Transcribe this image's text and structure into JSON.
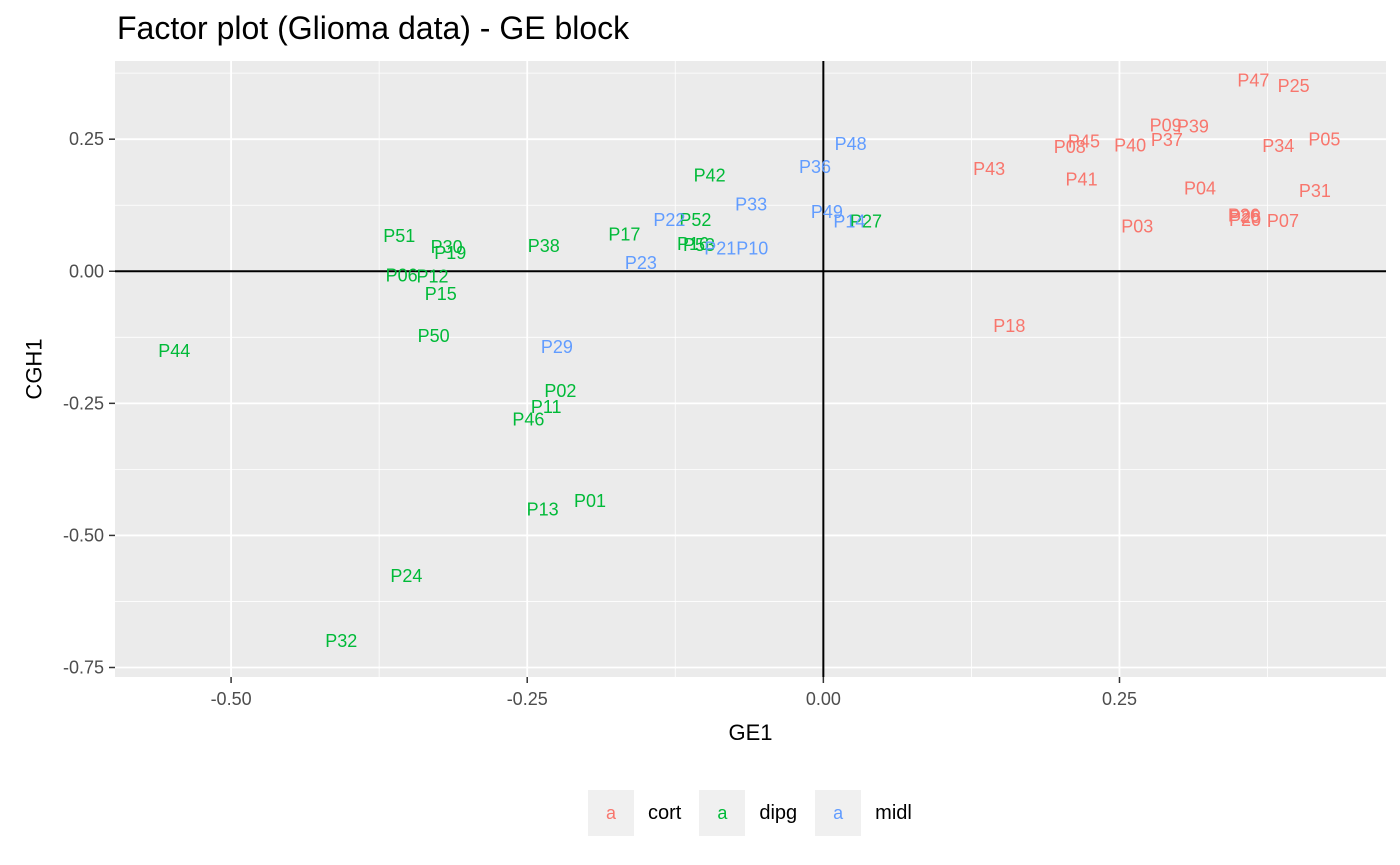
{
  "chart_data": {
    "type": "scatter",
    "title": "Factor plot (Glioma data) - GE block",
    "xlabel": "GE1",
    "ylabel": "CGH1",
    "xlim": [
      -0.598,
      0.475
    ],
    "ylim": [
      -0.768,
      0.398
    ],
    "x_ticks": [
      -0.5,
      -0.25,
      0.0,
      0.25
    ],
    "x_tick_labels": [
      "-0.50",
      "-0.25",
      "0.00",
      "0.25"
    ],
    "y_ticks": [
      -0.75,
      -0.5,
      -0.25,
      0.0,
      0.25
    ],
    "y_tick_labels": [
      "-0.75",
      "-0.50",
      "-0.25",
      "0.00",
      "0.25"
    ],
    "reference_lines": {
      "x": 0,
      "y": 0
    },
    "grid": true,
    "legend_position": "bottom",
    "groups": [
      {
        "name": "cort",
        "color": "#F8766D"
      },
      {
        "name": "dipg",
        "color": "#00BA38"
      },
      {
        "name": "midl",
        "color": "#619CFF"
      }
    ],
    "points": [
      {
        "label": "P47",
        "group": "cort",
        "x": 0.363,
        "y": 0.361
      },
      {
        "label": "P25",
        "group": "cort",
        "x": 0.397,
        "y": 0.351
      },
      {
        "label": "P09",
        "group": "cort",
        "x": 0.289,
        "y": 0.276
      },
      {
        "label": "P39",
        "group": "cort",
        "x": 0.312,
        "y": 0.274
      },
      {
        "label": "P45",
        "group": "cort",
        "x": 0.22,
        "y": 0.246
      },
      {
        "label": "P37",
        "group": "cort",
        "x": 0.29,
        "y": 0.248
      },
      {
        "label": "P40",
        "group": "cort",
        "x": 0.259,
        "y": 0.238
      },
      {
        "label": "P08",
        "group": "cort",
        "x": 0.208,
        "y": 0.235
      },
      {
        "label": "P34",
        "group": "cort",
        "x": 0.384,
        "y": 0.237
      },
      {
        "label": "P05",
        "group": "cort",
        "x": 0.423,
        "y": 0.249
      },
      {
        "label": "P43",
        "group": "cort",
        "x": 0.14,
        "y": 0.194
      },
      {
        "label": "P41",
        "group": "cort",
        "x": 0.218,
        "y": 0.174
      },
      {
        "label": "P04",
        "group": "cort",
        "x": 0.318,
        "y": 0.157
      },
      {
        "label": "P31",
        "group": "cort",
        "x": 0.415,
        "y": 0.152
      },
      {
        "label": "P26",
        "group": "cort",
        "x": 0.355,
        "y": 0.106
      },
      {
        "label": "P28",
        "group": "cort",
        "x": 0.356,
        "y": 0.103
      },
      {
        "label": "P20",
        "group": "cort",
        "x": 0.356,
        "y": 0.097
      },
      {
        "label": "P07",
        "group": "cort",
        "x": 0.388,
        "y": 0.095
      },
      {
        "label": "P03",
        "group": "cort",
        "x": 0.265,
        "y": 0.085
      },
      {
        "label": "P18",
        "group": "cort",
        "x": 0.157,
        "y": -0.104
      },
      {
        "label": "P42",
        "group": "dipg",
        "x": -0.096,
        "y": 0.181
      },
      {
        "label": "P52",
        "group": "dipg",
        "x": -0.108,
        "y": 0.097
      },
      {
        "label": "P27",
        "group": "dipg",
        "x": 0.036,
        "y": 0.094
      },
      {
        "label": "P17",
        "group": "dipg",
        "x": -0.168,
        "y": 0.07
      },
      {
        "label": "P51",
        "group": "dipg",
        "x": -0.358,
        "y": 0.067
      },
      {
        "label": "P38",
        "group": "dipg",
        "x": -0.236,
        "y": 0.048
      },
      {
        "label": "P16",
        "group": "dipg",
        "x": -0.11,
        "y": 0.052
      },
      {
        "label": "P53",
        "group": "dipg",
        "x": -0.105,
        "y": 0.05
      },
      {
        "label": "P30",
        "group": "dipg",
        "x": -0.318,
        "y": 0.046
      },
      {
        "label": "P19",
        "group": "dipg",
        "x": -0.315,
        "y": 0.035
      },
      {
        "label": "P06",
        "group": "dipg",
        "x": -0.356,
        "y": -0.008
      },
      {
        "label": "P12",
        "group": "dipg",
        "x": -0.33,
        "y": -0.01
      },
      {
        "label": "P15",
        "group": "dipg",
        "x": -0.323,
        "y": -0.043
      },
      {
        "label": "P50",
        "group": "dipg",
        "x": -0.329,
        "y": -0.123
      },
      {
        "label": "P44",
        "group": "dipg",
        "x": -0.548,
        "y": -0.151
      },
      {
        "label": "P02",
        "group": "dipg",
        "x": -0.222,
        "y": -0.227
      },
      {
        "label": "P11",
        "group": "dipg",
        "x": -0.234,
        "y": -0.257
      },
      {
        "label": "P46",
        "group": "dipg",
        "x": -0.249,
        "y": -0.281
      },
      {
        "label": "P13",
        "group": "dipg",
        "x": -0.237,
        "y": -0.451
      },
      {
        "label": "P01",
        "group": "dipg",
        "x": -0.197,
        "y": -0.435
      },
      {
        "label": "P24",
        "group": "dipg",
        "x": -0.352,
        "y": -0.577
      },
      {
        "label": "P32",
        "group": "dipg",
        "x": -0.407,
        "y": -0.7
      },
      {
        "label": "P48",
        "group": "midl",
        "x": 0.023,
        "y": 0.241
      },
      {
        "label": "P36",
        "group": "midl",
        "x": -0.007,
        "y": 0.197
      },
      {
        "label": "P33",
        "group": "midl",
        "x": -0.061,
        "y": 0.126
      },
      {
        "label": "P49",
        "group": "midl",
        "x": 0.003,
        "y": 0.112
      },
      {
        "label": "P14",
        "group": "midl",
        "x": 0.022,
        "y": 0.094
      },
      {
        "label": "P22",
        "group": "midl",
        "x": -0.13,
        "y": 0.097
      },
      {
        "label": "P21",
        "group": "midl",
        "x": -0.087,
        "y": 0.043
      },
      {
        "label": "P10",
        "group": "midl",
        "x": -0.06,
        "y": 0.043
      },
      {
        "label": "P23",
        "group": "midl",
        "x": -0.154,
        "y": 0.016
      },
      {
        "label": "P29",
        "group": "midl",
        "x": -0.225,
        "y": -0.143
      }
    ]
  },
  "legend": {
    "key_glyph": "a",
    "items": [
      {
        "label": "cort"
      },
      {
        "label": "dipg"
      },
      {
        "label": "midl"
      }
    ]
  }
}
